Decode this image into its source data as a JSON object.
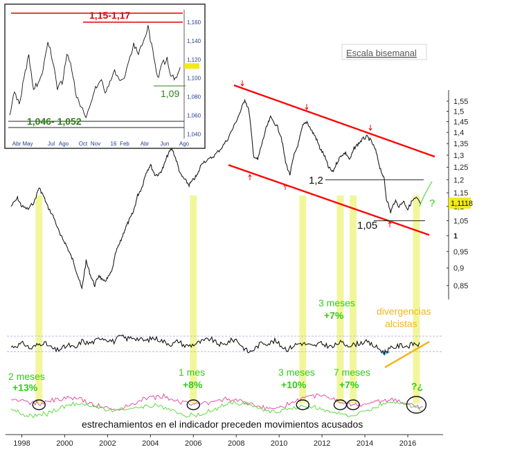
{
  "chart_data": [
    {
      "type": "line",
      "subtitle": "Escala bisemanal",
      "x_ticks": [
        "1998",
        "2000",
        "2002",
        "2004",
        "2006",
        "2008",
        "2010",
        "2012",
        "2014",
        "2016"
      ],
      "y_ticks": [
        "1,55",
        "1,5",
        "1,45",
        "1,4",
        "1,35",
        "1,3",
        "1,25",
        "1,2",
        "1,15",
        "1,1",
        "1,05",
        "1",
        "0,95",
        "0,9",
        "0,85"
      ],
      "ylim": [
        0.82,
        1.58
      ],
      "log_scale": true,
      "grid": false,
      "last_value_label": "1,1118",
      "series": [
        {
          "x": [
            1997.5,
            1997.8,
            1998.0,
            1998.3,
            1998.6,
            1998.8,
            1999.0,
            1999.2,
            1999.5,
            1999.8,
            2000.0,
            2000.2,
            2000.4,
            2000.6,
            2000.8,
            2001.0,
            2001.2,
            2001.4,
            2001.6,
            2001.8,
            2002.0,
            2002.2,
            2002.4,
            2002.6,
            2002.8,
            2003.0,
            2003.2,
            2003.4,
            2003.6,
            2003.8,
            2004.0,
            2004.2,
            2004.4,
            2004.6,
            2004.8,
            2005.0,
            2005.2,
            2005.4,
            2005.6,
            2005.8,
            2006.0,
            2006.2,
            2006.4,
            2006.7,
            2007.0,
            2007.3,
            2007.6,
            2007.9,
            2008.2,
            2008.4,
            2008.6,
            2008.8,
            2009.0,
            2009.2,
            2009.4,
            2009.6,
            2009.9,
            2010.1,
            2010.3,
            2010.5,
            2010.7,
            2010.9,
            2011.1,
            2011.3,
            2011.5,
            2011.7,
            2011.9,
            2012.1,
            2012.3,
            2012.5,
            2012.7,
            2012.9,
            2013.1,
            2013.3,
            2013.5,
            2013.7,
            2013.9,
            2014.1,
            2014.3,
            2014.5,
            2014.7,
            2014.9,
            2015.0,
            2015.2,
            2015.4,
            2015.6,
            2015.8,
            2016.0,
            2016.2,
            2016.4,
            2016.6
          ],
          "values": [
            1.1,
            1.13,
            1.1,
            1.09,
            1.12,
            1.17,
            1.14,
            1.1,
            1.06,
            1.0,
            0.98,
            0.95,
            0.92,
            0.88,
            0.84,
            0.92,
            0.88,
            0.85,
            0.88,
            0.86,
            0.87,
            0.89,
            0.95,
            0.98,
            1.02,
            1.05,
            1.08,
            1.14,
            1.17,
            1.23,
            1.26,
            1.22,
            1.22,
            1.25,
            1.3,
            1.33,
            1.28,
            1.22,
            1.2,
            1.18,
            1.2,
            1.22,
            1.27,
            1.28,
            1.3,
            1.33,
            1.37,
            1.43,
            1.5,
            1.56,
            1.5,
            1.3,
            1.28,
            1.35,
            1.42,
            1.47,
            1.43,
            1.38,
            1.27,
            1.22,
            1.3,
            1.35,
            1.43,
            1.45,
            1.41,
            1.38,
            1.33,
            1.3,
            1.25,
            1.23,
            1.27,
            1.3,
            1.31,
            1.28,
            1.33,
            1.35,
            1.37,
            1.38,
            1.36,
            1.32,
            1.25,
            1.2,
            1.13,
            1.08,
            1.12,
            1.1,
            1.12,
            1.09,
            1.12,
            1.13,
            1.11
          ]
        }
      ]
    },
    {
      "type": "line",
      "x_ticks": [
        "Abr",
        "May",
        "Jul",
        "Ago",
        "Oct",
        "Nov",
        "16",
        "Feb",
        "Abr",
        "Jun",
        "Ago"
      ],
      "y_ticks": [
        "1,160",
        "1,140",
        "1,120",
        "1,100",
        "1,080",
        "1,060",
        "1,040"
      ],
      "ylim": [
        1.035,
        1.172
      ],
      "grid": false,
      "series": [
        {
          "x": [
            0.0,
            0.3,
            0.6,
            0.9,
            1.2,
            1.5,
            1.8,
            2.1,
            2.4,
            2.7,
            3.0,
            3.3,
            3.6,
            3.9,
            4.2,
            4.5,
            4.8,
            5.1,
            5.4,
            5.7,
            6.0,
            6.3,
            6.6,
            6.9,
            7.2,
            7.5,
            7.8,
            8.1,
            8.4,
            8.7,
            9.0,
            9.3,
            9.6,
            9.9,
            10.2,
            10.5,
            10.8
          ],
          "values": [
            1.058,
            1.085,
            1.072,
            1.1,
            1.125,
            1.09,
            1.095,
            1.11,
            1.14,
            1.12,
            1.09,
            1.095,
            1.125,
            1.11,
            1.08,
            1.07,
            1.06,
            1.07,
            1.09,
            1.1,
            1.085,
            1.094,
            1.11,
            1.095,
            1.1,
            1.12,
            1.135,
            1.125,
            1.14,
            1.155,
            1.13,
            1.1,
            1.115,
            1.12,
            1.1,
            1.102,
            1.113
          ]
        }
      ],
      "annotations": [
        "1,15-1,17",
        "1,09",
        "1,046- 1,052"
      ]
    },
    {
      "type": "line",
      "series": [
        {
          "x": [
            1997.5,
            1997.8,
            1998.1,
            1998.4,
            1998.7,
            1999.0,
            1999.3,
            1999.6,
            1999.9,
            2000.2,
            2000.5,
            2000.8,
            2001.1,
            2001.4,
            2001.7,
            2002.0,
            2002.3,
            2002.6,
            2002.9,
            2003.2,
            2003.5,
            2003.8,
            2004.1,
            2004.4,
            2004.7,
            2005.0,
            2005.3,
            2005.6,
            2005.9,
            2006.2,
            2006.5,
            2006.8,
            2007.1,
            2007.4,
            2007.7,
            2008.0,
            2008.3,
            2008.6,
            2008.9,
            2009.2,
            2009.5,
            2009.8,
            2010.1,
            2010.4,
            2010.7,
            2011.0,
            2011.3,
            2011.6,
            2011.9,
            2012.2,
            2012.5,
            2012.8,
            2013.1,
            2013.4,
            2013.7,
            2014.0,
            2014.3,
            2014.6,
            2014.9,
            2015.1,
            2015.4,
            2015.7,
            2016.0,
            2016.3,
            2016.6
          ],
          "values": [
            0.45,
            0.5,
            0.55,
            0.4,
            0.5,
            0.58,
            0.46,
            0.35,
            0.42,
            0.5,
            0.4,
            0.62,
            0.55,
            0.6,
            0.72,
            0.66,
            0.6,
            0.75,
            0.68,
            0.72,
            0.66,
            0.62,
            0.7,
            0.66,
            0.58,
            0.52,
            0.62,
            0.48,
            0.5,
            0.56,
            0.62,
            0.68,
            0.55,
            0.5,
            0.62,
            0.66,
            0.45,
            0.3,
            0.42,
            0.58,
            0.55,
            0.62,
            0.48,
            0.38,
            0.5,
            0.56,
            0.52,
            0.46,
            0.55,
            0.5,
            0.44,
            0.58,
            0.52,
            0.5,
            0.55,
            0.6,
            0.52,
            0.42,
            0.3,
            0.38,
            0.45,
            0.5,
            0.47,
            0.55,
            0.5
          ]
        }
      ]
    }
  ],
  "annotations": {
    "trend_levels": [
      "1,2",
      "1,05"
    ],
    "question": "?",
    "divergence": "divergencias alcistas",
    "bottom_question": "?¿",
    "footnote": "estrechamientos en el indicador preceden movimientos acusados",
    "moves": [
      {
        "period": "2 meses",
        "change": "+13%"
      },
      {
        "period": "1 mes",
        "change": "+8%"
      },
      {
        "period": "3 meses",
        "change": "+10%"
      },
      {
        "period": "3 meses",
        "change": "+7%"
      },
      {
        "period": "7 meses",
        "change": "+7%"
      }
    ]
  },
  "colors": {
    "channel": "#ff0000",
    "price": "#1a1a1a",
    "highlight": "#eef58a",
    "move_labels": "#2ecc1a",
    "divergence": "#f5b41e",
    "osc_pink": "#e0409a",
    "osc_green": "#4cd92a",
    "oscillator_fill": "#5ac8e0"
  }
}
